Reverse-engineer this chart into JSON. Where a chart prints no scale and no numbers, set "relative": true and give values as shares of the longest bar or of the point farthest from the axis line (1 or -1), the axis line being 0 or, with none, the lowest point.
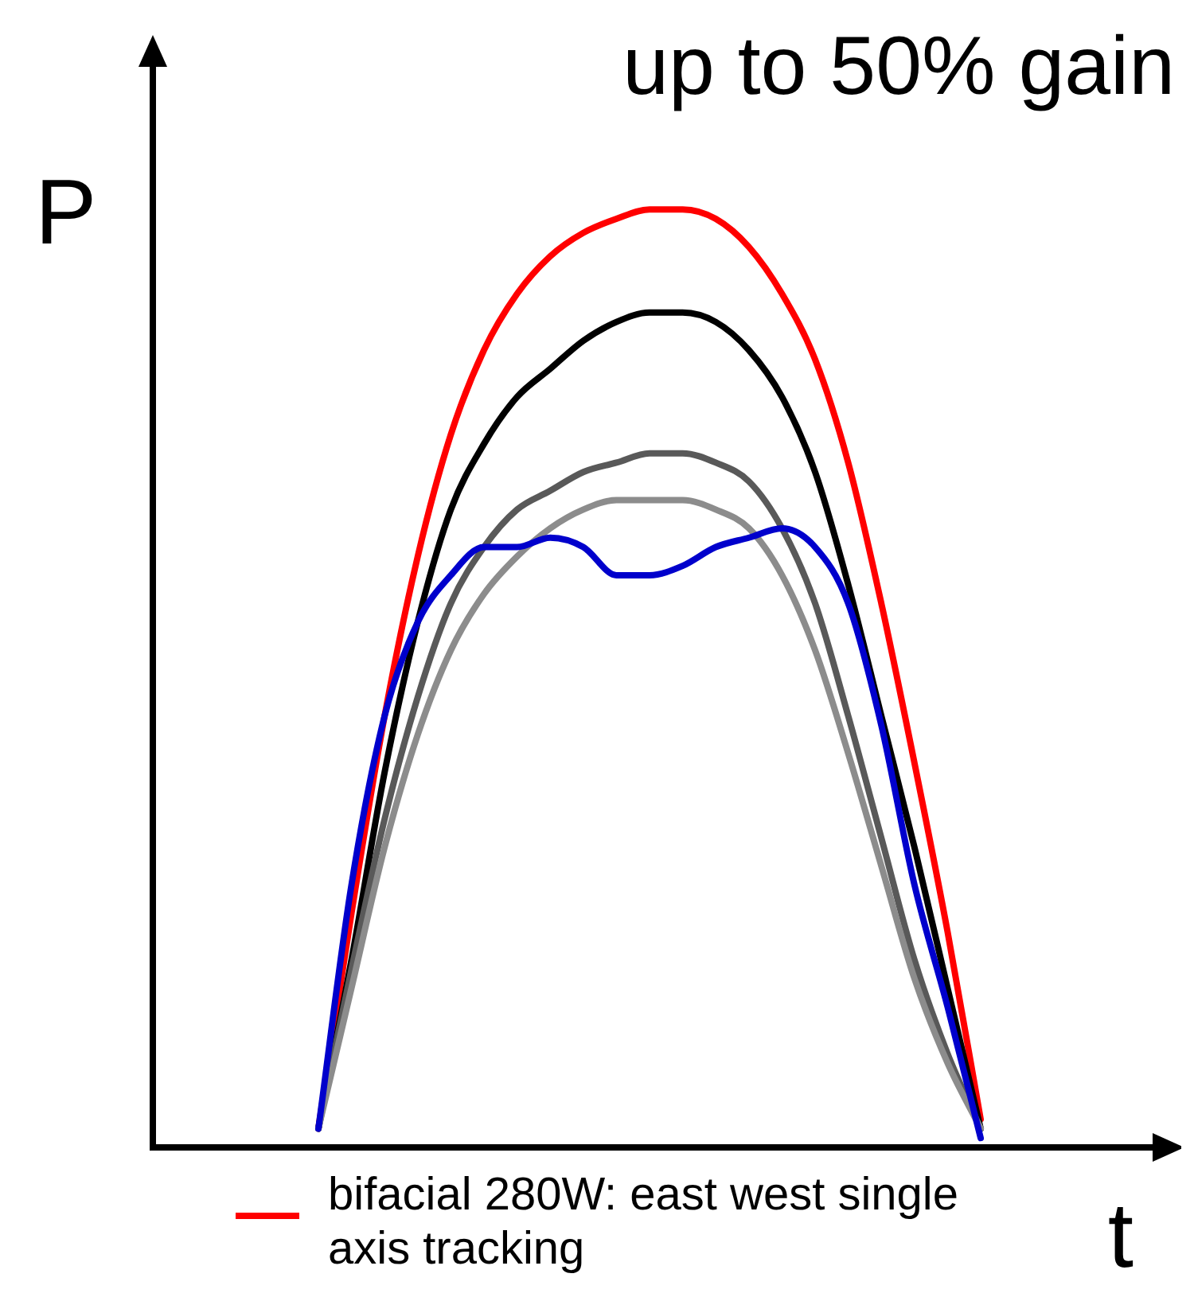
{
  "chart_data": {
    "type": "line",
    "title": "up to 50% gain",
    "ylabel": "P",
    "xlabel": "t",
    "relative": true,
    "legend": "bottom",
    "marker": "none",
    "line_style": "solid",
    "grid": false,
    "categories": [
      null,
      null,
      null,
      null,
      null,
      null,
      null,
      null,
      null,
      null,
      null,
      null,
      null,
      null,
      null,
      null,
      null,
      null,
      null,
      null,
      null,
      null,
      null,
      null,
      null,
      null,
      null,
      null,
      null,
      null,
      null
    ],
    "series": [
      {
        "name": "bifacial 280W: east west single axis tracking",
        "color": "#ff0000",
        "values": [
          null,
          null,
          null,
          null,
          null,
          0.02,
          0.25,
          0.46,
          0.63,
          0.76,
          0.85,
          0.91,
          0.95,
          0.975,
          0.99,
          1,
          1,
          0.99,
          0.96,
          0.91,
          0.84,
          0.73,
          0.58,
          0.41,
          0.23,
          0.03,
          null,
          null,
          null,
          null,
          null
        ]
      },
      {
        "color": "#000000",
        "values": [
          null,
          null,
          null,
          null,
          null,
          0.02,
          0.2,
          0.4,
          0.56,
          0.68,
          0.75,
          0.8,
          0.83,
          0.86,
          0.88,
          0.89,
          0.89,
          0.88,
          0.85,
          0.8,
          0.72,
          0.6,
          0.46,
          0.32,
          0.17,
          0.02,
          null,
          null,
          null,
          null,
          null
        ]
      },
      {
        "color": "#595959",
        "values": [
          null,
          null,
          null,
          null,
          null,
          0.02,
          0.19,
          0.35,
          0.48,
          0.58,
          0.64,
          0.68,
          0.7,
          0.72,
          0.73,
          0.74,
          0.74,
          0.73,
          0.71,
          0.66,
          0.58,
          0.46,
          0.33,
          0.2,
          0.1,
          0.02,
          null,
          null,
          null,
          null,
          null
        ]
      },
      {
        "color": "#8c8c8c",
        "values": [
          null,
          null,
          null,
          null,
          null,
          0.02,
          0.17,
          0.32,
          0.44,
          0.53,
          0.59,
          0.63,
          0.66,
          0.68,
          0.69,
          0.69,
          0.69,
          0.68,
          0.66,
          0.61,
          0.53,
          0.42,
          0.3,
          0.18,
          0.09,
          0.02,
          null,
          null,
          null,
          null,
          null
        ]
      },
      {
        "color": "#0000cc",
        "values": [
          null,
          null,
          null,
          null,
          null,
          0.02,
          0.28,
          0.46,
          0.56,
          0.61,
          0.64,
          0.64,
          0.65,
          0.64,
          0.61,
          0.61,
          0.62,
          0.64,
          0.65,
          0.66,
          0.64,
          0.58,
          0.45,
          0.28,
          0.15,
          0.01,
          null,
          null,
          null,
          null,
          null
        ]
      }
    ]
  }
}
